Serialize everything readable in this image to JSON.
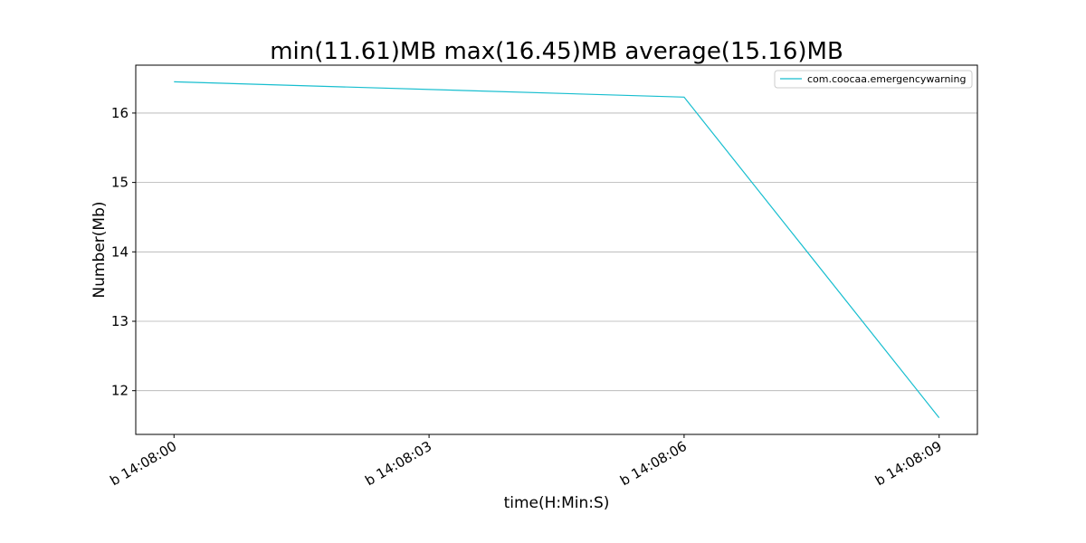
{
  "chart_data": {
    "type": "line",
    "title": "min(11.61)MB max(16.45)MB average(15.16)MB",
    "xlabel": "time(H:Min:S)",
    "ylabel": "Number(Mb)",
    "categories": [
      "b 14:08:00",
      "b 14:08:03",
      "b 14:08:06",
      "b 14:08:09"
    ],
    "x": [
      0,
      6,
      9
    ],
    "series": [
      {
        "name": "com.coocaa.emergencywarning",
        "x": [
          0,
          6,
          9
        ],
        "values": [
          16.45,
          16.23,
          11.61
        ],
        "color": "#17becf"
      }
    ],
    "xlim": [
      -0.45,
      9.45
    ],
    "ylim": [
      11.37,
      16.69
    ],
    "yticks": [
      12,
      13,
      14,
      15,
      16
    ],
    "grid": "y",
    "legend": "top-right"
  }
}
